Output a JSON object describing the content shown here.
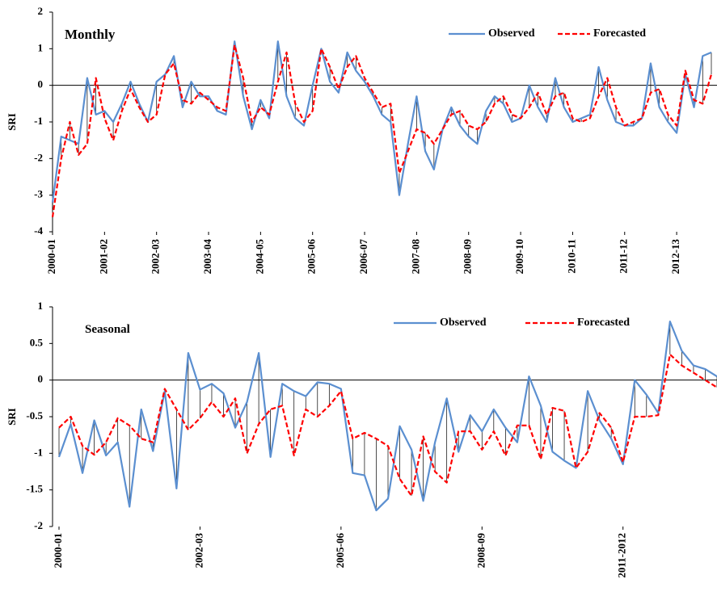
{
  "chart_data": [
    {
      "type": "line",
      "title": "Monthly",
      "ylabel": "SRI",
      "legend": "upper right",
      "categories": [
        "2000-01",
        null,
        null,
        null,
        null,
        null,
        "2001-02",
        null,
        null,
        null,
        null,
        null,
        "2002-03",
        null,
        null,
        null,
        null,
        null,
        "2003-04",
        null,
        null,
        null,
        null,
        null,
        "2004-05",
        null,
        null,
        null,
        null,
        null,
        "2005-06",
        null,
        null,
        null,
        null,
        null,
        "2006-07",
        null,
        null,
        null,
        null,
        null,
        "2007-08",
        null,
        null,
        null,
        null,
        null,
        "2008-09",
        null,
        null,
        null,
        null,
        null,
        "2009-10",
        null,
        null,
        null,
        null,
        null,
        "2010-11",
        null,
        null,
        null,
        null,
        null,
        "2011-12",
        null,
        null,
        null,
        null,
        null,
        "2012-13",
        null,
        null,
        null,
        null
      ],
      "series": [
        {
          "name": "Observed",
          "color": "#5b8fd0",
          "dash": false,
          "values": [
            -3.2,
            -1.4,
            -1.5,
            -1.6,
            0.2,
            -0.8,
            -0.7,
            -1.0,
            -0.5,
            0.1,
            -0.5,
            -1.0,
            0.1,
            0.3,
            0.8,
            -0.6,
            0.1,
            -0.3,
            -0.3,
            -0.7,
            -0.8,
            1.2,
            -0.3,
            -1.2,
            -0.4,
            -0.9,
            1.2,
            -0.3,
            -0.9,
            -1.1,
            0.0,
            1.0,
            0.1,
            -0.2,
            0.9,
            0.4,
            0.1,
            -0.3,
            -0.8,
            -1.0,
            -3.0,
            -1.6,
            -0.3,
            -1.8,
            -2.3,
            -1.2,
            -0.6,
            -1.1,
            -1.4,
            -1.6,
            -0.7,
            -0.3,
            -0.5,
            -1.0,
            -0.9,
            0.0,
            -0.6,
            -1.0,
            0.2,
            -0.6,
            -1.0,
            -0.9,
            -0.8,
            0.5,
            -0.4,
            -1.0,
            -1.1,
            -1.1,
            -0.9,
            0.6,
            -0.6,
            -1.0,
            -1.3,
            0.3,
            -0.6,
            0.8,
            0.9
          ]
        },
        {
          "name": "Forecasted",
          "color": "#ff0000",
          "dash": true,
          "values": [
            -3.6,
            -2.0,
            -1.0,
            -1.9,
            -1.6,
            0.2,
            -0.9,
            -1.5,
            -0.7,
            -0.1,
            -0.6,
            -1.0,
            -0.8,
            0.3,
            0.6,
            -0.4,
            -0.5,
            -0.2,
            -0.4,
            -0.6,
            -0.7,
            1.1,
            0.2,
            -1.0,
            -0.6,
            -0.8,
            0.1,
            0.9,
            -0.5,
            -1.0,
            -0.7,
            1.0,
            0.5,
            -0.1,
            0.5,
            0.8,
            0.2,
            -0.2,
            -0.6,
            -0.5,
            -2.4,
            -1.8,
            -1.2,
            -1.3,
            -1.6,
            -1.2,
            -0.8,
            -0.7,
            -1.1,
            -1.2,
            -1.0,
            -0.5,
            -0.3,
            -0.8,
            -0.9,
            -0.6,
            -0.2,
            -0.8,
            -0.3,
            -0.2,
            -0.9,
            -1.0,
            -0.9,
            -0.3,
            0.2,
            -0.6,
            -1.1,
            -1.0,
            -0.9,
            -0.2,
            -0.1,
            -0.8,
            -1.1,
            0.4,
            -0.4,
            -0.5,
            0.3
          ]
        }
      ],
      "ylim": [
        -4,
        2
      ],
      "yticks": [
        -4,
        -3,
        -2,
        -1,
        0,
        1,
        2
      ],
      "grid": false
    },
    {
      "type": "line",
      "title": "Seasonal",
      "ylabel": "SRI",
      "legend": "upper right",
      "categories": [
        "2000-01",
        null,
        null,
        null,
        null,
        null,
        null,
        null,
        null,
        null,
        null,
        null,
        "2002-03",
        null,
        null,
        null,
        null,
        null,
        null,
        null,
        null,
        null,
        null,
        null,
        "2005-06",
        null,
        null,
        null,
        null,
        null,
        null,
        null,
        null,
        null,
        null,
        null,
        "2008-09",
        null,
        null,
        null,
        null,
        null,
        null,
        null,
        null,
        null,
        null,
        null,
        "2011-2012",
        null,
        null,
        null,
        null,
        null,
        null,
        null,
        null
      ],
      "series": [
        {
          "name": "Observed",
          "color": "#5b8fd0",
          "dash": false,
          "values": [
            -1.05,
            -0.6,
            -1.27,
            -0.55,
            -1.03,
            -0.85,
            -1.73,
            -0.4,
            -0.97,
            -0.15,
            -1.48,
            0.37,
            -0.13,
            -0.05,
            -0.18,
            -0.65,
            -0.3,
            0.37,
            -1.05,
            -0.05,
            -0.15,
            -0.22,
            -0.03,
            -0.05,
            -0.12,
            -1.27,
            -1.3,
            -1.78,
            -1.62,
            -0.63,
            -0.95,
            -1.65,
            -0.85,
            -0.25,
            -0.98,
            -0.48,
            -0.7,
            -0.4,
            -0.65,
            -0.85,
            0.05,
            -0.35,
            -0.98,
            -1.1,
            -1.2,
            -0.15,
            -0.55,
            -0.8,
            -1.15,
            0.0,
            -0.2,
            -0.45,
            0.8,
            0.4,
            0.2,
            0.15,
            0.05
          ]
        },
        {
          "name": "Forecasted",
          "color": "#ff0000",
          "dash": true,
          "values": [
            -0.65,
            -0.5,
            -0.9,
            -1.02,
            -0.85,
            -0.52,
            -0.62,
            -0.8,
            -0.85,
            -0.12,
            -0.4,
            -0.68,
            -0.52,
            -0.3,
            -0.5,
            -0.25,
            -1.0,
            -0.6,
            -0.4,
            -0.35,
            -1.03,
            -0.4,
            -0.5,
            -0.35,
            -0.15,
            -0.8,
            -0.72,
            -0.8,
            -0.9,
            -1.35,
            -1.58,
            -0.77,
            -1.25,
            -1.4,
            -0.7,
            -0.7,
            -0.95,
            -0.7,
            -1.03,
            -0.62,
            -0.62,
            -1.08,
            -0.38,
            -0.42,
            -1.2,
            -0.98,
            -0.45,
            -0.65,
            -1.12,
            -0.5,
            -0.5,
            -0.48,
            0.35,
            0.2,
            0.1,
            0.0,
            -0.1
          ]
        }
      ],
      "ylim": [
        -2,
        1
      ],
      "yticks": [
        -2,
        -1.5,
        -1,
        -0.5,
        0,
        0.5,
        1
      ],
      "grid": false
    }
  ]
}
